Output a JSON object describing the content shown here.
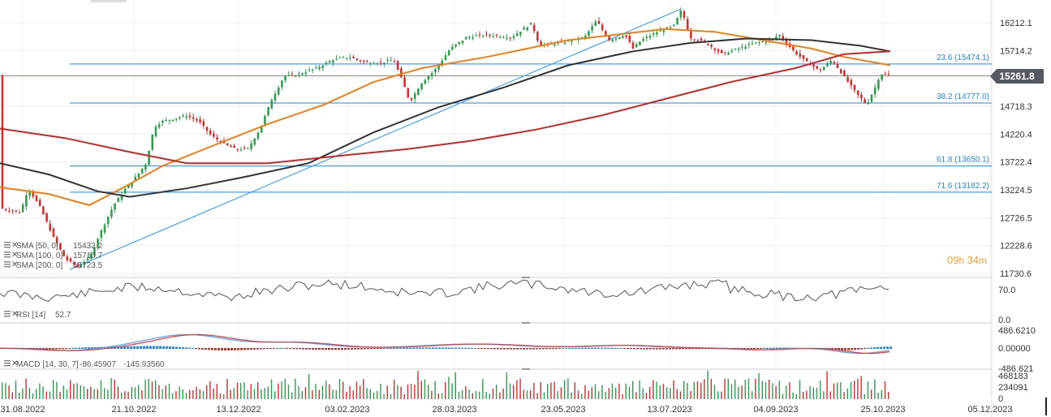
{
  "chart_data": {
    "type": "candlestick",
    "price_axis": {
      "ticks": [
        "16212.1",
        "15714.2",
        "15226.2",
        "14718.3",
        "14220.4",
        "13722.4",
        "13224.5",
        "12726.5",
        "12228.6",
        "11730.6"
      ],
      "ylim": [
        11730.6,
        16461
      ]
    },
    "last_price": "15261.8",
    "fibonacci": [
      {
        "label": "23.6 (15474.1)",
        "value": 15474.1
      },
      {
        "label": "38.2 (14777.0)",
        "value": 14777.0
      },
      {
        "label": "61.8 (13650.1)",
        "value": 13650.1
      },
      {
        "label": "71.6 (13182.2)",
        "value": 13182.2
      }
    ],
    "x_dates": [
      "31.08.2022",
      "21.10.2022",
      "13.12.2022",
      "03.02.2023",
      "28.03.2023",
      "23.05.2023",
      "13.07.2023",
      "04.09.2023",
      "25.10.2023",
      "05.12.2023"
    ],
    "price_path": [
      [
        0,
        12900
      ],
      [
        25,
        12820
      ],
      [
        35,
        13250
      ],
      [
        50,
        12900
      ],
      [
        65,
        12400
      ],
      [
        80,
        12000
      ],
      [
        95,
        11850
      ],
      [
        110,
        12000
      ],
      [
        125,
        12500
      ],
      [
        140,
        12950
      ],
      [
        155,
        13250
      ],
      [
        170,
        13500
      ],
      [
        180,
        13700
      ],
      [
        190,
        14350
      ],
      [
        200,
        14450
      ],
      [
        215,
        14500
      ],
      [
        230,
        14550
      ],
      [
        245,
        14450
      ],
      [
        260,
        14200
      ],
      [
        275,
        14050
      ],
      [
        290,
        13950
      ],
      [
        305,
        13950
      ],
      [
        320,
        14300
      ],
      [
        335,
        14850
      ],
      [
        350,
        15250
      ],
      [
        370,
        15300
      ],
      [
        390,
        15400
      ],
      [
        410,
        15550
      ],
      [
        430,
        15600
      ],
      [
        450,
        15500
      ],
      [
        470,
        15500
      ],
      [
        485,
        15550
      ],
      [
        495,
        15200
      ],
      [
        505,
        14800
      ],
      [
        520,
        15150
      ],
      [
        535,
        15350
      ],
      [
        555,
        15750
      ],
      [
        575,
        15950
      ],
      [
        600,
        16000
      ],
      [
        630,
        15950
      ],
      [
        655,
        16200
      ],
      [
        665,
        15800
      ],
      [
        690,
        15850
      ],
      [
        720,
        15950
      ],
      [
        735,
        16250
      ],
      [
        750,
        15900
      ],
      [
        770,
        16000
      ],
      [
        780,
        15750
      ],
      [
        790,
        15900
      ],
      [
        810,
        16050
      ],
      [
        830,
        16150
      ],
      [
        840,
        16450
      ],
      [
        850,
        15950
      ],
      [
        870,
        15850
      ],
      [
        890,
        15650
      ],
      [
        910,
        15750
      ],
      [
        930,
        15850
      ],
      [
        950,
        15900
      ],
      [
        960,
        16000
      ],
      [
        975,
        15750
      ],
      [
        990,
        15550
      ],
      [
        1010,
        15350
      ],
      [
        1025,
        15550
      ],
      [
        1040,
        15250
      ],
      [
        1055,
        14950
      ],
      [
        1068,
        14750
      ],
      [
        1078,
        15050
      ],
      [
        1085,
        15300
      ],
      [
        1097,
        15261.8
      ]
    ],
    "series": [
      {
        "name": "SMA [50, 0]",
        "color": "#f07f12",
        "path": [
          [
            0,
            13270
          ],
          [
            60,
            13150
          ],
          [
            110,
            12950
          ],
          [
            150,
            13250
          ],
          [
            200,
            13650
          ],
          [
            260,
            14000
          ],
          [
            330,
            14400
          ],
          [
            400,
            14750
          ],
          [
            460,
            15150
          ],
          [
            520,
            15400
          ],
          [
            600,
            15600
          ],
          [
            700,
            15900
          ],
          [
            760,
            16000
          ],
          [
            820,
            16100
          ],
          [
            880,
            16050
          ],
          [
            940,
            15900
          ],
          [
            1000,
            15750
          ],
          [
            1040,
            15600
          ],
          [
            1097,
            15450
          ]
        ]
      },
      {
        "name": "SMA [100, 0]",
        "color": "#333333",
        "path": [
          [
            0,
            13700
          ],
          [
            60,
            13500
          ],
          [
            120,
            13200
          ],
          [
            160,
            13100
          ],
          [
            230,
            13250
          ],
          [
            300,
            13450
          ],
          [
            380,
            13700
          ],
          [
            460,
            14250
          ],
          [
            540,
            14700
          ],
          [
            620,
            15050
          ],
          [
            700,
            15450
          ],
          [
            780,
            15700
          ],
          [
            850,
            15850
          ],
          [
            920,
            15930
          ],
          [
            1000,
            15900
          ],
          [
            1060,
            15800
          ],
          [
            1097,
            15700
          ]
        ]
      },
      {
        "name": "SMA [200, 0]",
        "color": "#c62828",
        "path": [
          [
            0,
            14320
          ],
          [
            80,
            14150
          ],
          [
            160,
            13900
          ],
          [
            230,
            13700
          ],
          [
            330,
            13700
          ],
          [
            430,
            13850
          ],
          [
            500,
            13950
          ],
          [
            580,
            14100
          ],
          [
            660,
            14300
          ],
          [
            740,
            14550
          ],
          [
            820,
            14850
          ],
          [
            900,
            15150
          ],
          [
            980,
            15400
          ],
          [
            1040,
            15650
          ],
          [
            1097,
            15700
          ]
        ]
      }
    ],
    "sma_legend": [
      {
        "label": "SMA [50, 0]",
        "value": "15432.2"
      },
      {
        "label": "SMA [100, 0]",
        "value": "15710.7"
      },
      {
        "label": "SMA [200, 0]",
        "value": "15723.5"
      }
    ],
    "rsi": {
      "label": "RSI [14]",
      "value": "52.7",
      "ticks": [
        "70.0",
        "0.0"
      ]
    },
    "macd": {
      "label": "MACD [14, 30, 7]",
      "values": [
        "-86.45907",
        "-145.93560"
      ],
      "ticks": [
        "486.6210",
        "0.00000",
        "-486.621"
      ]
    },
    "volume": {
      "ticks": [
        "468183",
        "234091",
        "0"
      ]
    }
  },
  "countdown": {
    "hours": "09",
    "h": "h",
    "minutes": "34",
    "m": "m"
  }
}
